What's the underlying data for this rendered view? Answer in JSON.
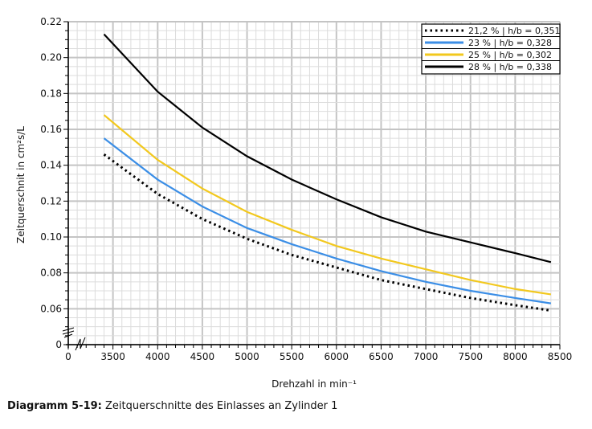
{
  "chart_data": {
    "type": "line",
    "xlabel": "Drehzahl in min⁻¹",
    "ylabel": "Zeitquerschnit in cm²s/L",
    "xlim": [
      3000,
      8500
    ],
    "ylim": [
      0.04,
      0.22
    ],
    "x_axis_break": true,
    "y_axis_break": true,
    "x_ticks": [
      "0",
      "3500",
      "4000",
      "4500",
      "5000",
      "5500",
      "6000",
      "6500",
      "7000",
      "7500",
      "8000",
      "8500"
    ],
    "y_ticks": [
      "0",
      "0.06",
      "0.08",
      "0.10",
      "0.12",
      "0.14",
      "0.16",
      "0.18",
      "0.20",
      "0.22"
    ],
    "grid": true,
    "legend_position": "top-right",
    "x": [
      3400,
      4000,
      4500,
      5000,
      5500,
      6000,
      6500,
      7000,
      7500,
      8000,
      8400
    ],
    "series": [
      {
        "name": "21,2 % | h/b = 0,351",
        "color": "#000000",
        "style": "dotted",
        "values": [
          0.146,
          0.124,
          0.11,
          0.099,
          0.09,
          0.083,
          0.076,
          0.071,
          0.066,
          0.062,
          0.059
        ]
      },
      {
        "name": "23 % | h/b = 0,328",
        "color": "#3b8ee6",
        "style": "solid",
        "values": [
          0.155,
          0.132,
          0.117,
          0.105,
          0.096,
          0.088,
          0.081,
          0.075,
          0.07,
          0.066,
          0.063
        ]
      },
      {
        "name": "25 % | h/b = 0,302",
        "color": "#f2c81e",
        "style": "solid",
        "values": [
          0.168,
          0.143,
          0.127,
          0.114,
          0.104,
          0.095,
          0.088,
          0.082,
          0.076,
          0.071,
          0.068
        ]
      },
      {
        "name": "28 % | h/b = 0,338",
        "color": "#000000",
        "style": "solid",
        "values": [
          0.213,
          0.181,
          0.161,
          0.145,
          0.132,
          0.121,
          0.111,
          0.103,
          0.097,
          0.091,
          0.086
        ]
      }
    ]
  },
  "caption": {
    "label": "Diagramm 5-19:",
    "text": " Zeitquerschnitte des Einlasses an Zylinder 1"
  }
}
